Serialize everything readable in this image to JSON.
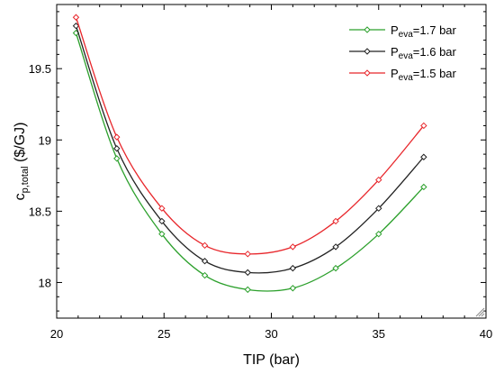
{
  "chart_data": {
    "type": "line",
    "xlabel": "TIP (bar)",
    "ylabel_main": "c",
    "ylabel_sub": "p,total",
    "ylabel_unit": " ($/GJ)",
    "xlim": [
      20,
      40
    ],
    "ylim": [
      17.75,
      19.95
    ],
    "x_ticks": [
      20,
      25,
      30,
      35,
      40
    ],
    "x_tick_labels": [
      "20",
      "25",
      "30",
      "35",
      "40"
    ],
    "y_ticks": [
      18,
      18.5,
      19,
      19.5
    ],
    "y_tick_labels": [
      "18",
      "18.5",
      "19",
      "19.5"
    ],
    "grid": false,
    "legend_position": "top-right",
    "x": [
      20.9,
      22.8,
      24.9,
      26.9,
      28.9,
      31.0,
      33.0,
      35.0,
      37.1
    ],
    "series": [
      {
        "name_main": "P",
        "name_sub": "eva",
        "name_rest": "=1.7 bar",
        "color": "#2ca02c",
        "values": [
          19.75,
          18.87,
          18.34,
          18.05,
          17.95,
          17.96,
          18.1,
          18.34,
          18.67
        ]
      },
      {
        "name_main": "P",
        "name_sub": "eva",
        "name_rest": "=1.6 bar",
        "color": "#222222",
        "values": [
          19.8,
          18.94,
          18.43,
          18.15,
          18.07,
          18.1,
          18.25,
          18.52,
          18.88
        ]
      },
      {
        "name_main": "P",
        "name_sub": "eva",
        "name_rest": "=1.5 bar",
        "color": "#e8262b",
        "values": [
          19.86,
          19.02,
          18.52,
          18.26,
          18.2,
          18.25,
          18.43,
          18.72,
          19.1
        ]
      }
    ]
  }
}
